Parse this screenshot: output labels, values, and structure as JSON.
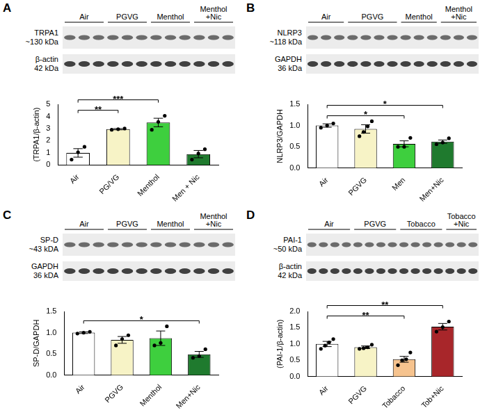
{
  "chart_data": [
    {
      "type": "bar",
      "title": "A",
      "blot": {
        "groups": [
          "Air",
          "PGVG",
          "Menthol",
          "Menthol +Nic"
        ],
        "bands": [
          {
            "label": "TRPA1",
            "size": "~130 kDa"
          },
          {
            "label": "β-actin",
            "size": "42 kDa"
          }
        ]
      },
      "categories": [
        "Air",
        "PG/VG",
        "Menthol",
        "Men + Nic"
      ],
      "values": [
        1.0,
        2.95,
        3.5,
        0.9
      ],
      "errors": [
        0.35,
        0.05,
        0.35,
        0.3
      ],
      "points": [
        [
          0.45,
          1.05,
          1.5
        ],
        [
          2.9,
          2.95,
          3.0
        ],
        [
          2.9,
          3.55,
          4.05
        ],
        [
          0.45,
          0.95,
          1.3
        ]
      ],
      "colors": [
        "#ffffff",
        "#f7f3c6",
        "#3ecf3e",
        "#1f7a2e"
      ],
      "y_label": "(TRPA1/β-actin)",
      "ylim": [
        0,
        5
      ],
      "yticks": [
        0,
        1,
        2,
        3,
        4,
        5
      ],
      "grid": false,
      "comparisons": [
        {
          "from": "Air",
          "to": "PG/VG",
          "label": "**"
        },
        {
          "from": "Air",
          "to": "Menthol",
          "label": "***"
        }
      ]
    },
    {
      "type": "bar",
      "title": "B",
      "blot": {
        "groups": [
          "Air",
          "PGVG",
          "Menthol",
          "Menthol +Nic"
        ],
        "bands": [
          {
            "label": "NLRP3",
            "size": "~118 kDa"
          },
          {
            "label": "GAPDH",
            "size": "36 kDa"
          }
        ]
      },
      "categories": [
        "Air",
        "PGVG",
        "Men",
        "Men+Nic"
      ],
      "values": [
        1.0,
        0.92,
        0.57,
        0.62
      ],
      "errors": [
        0.04,
        0.1,
        0.07,
        0.04
      ],
      "points": [
        [
          0.95,
          1.0,
          1.05
        ],
        [
          0.75,
          0.85,
          0.98,
          1.1
        ],
        [
          0.5,
          0.5,
          0.71
        ],
        [
          0.56,
          0.6,
          0.7
        ]
      ],
      "colors": [
        "#ffffff",
        "#f7f3c6",
        "#3ecf3e",
        "#1f7a2e"
      ],
      "y_label": "NLRP3/GAPDH",
      "ylim": [
        0,
        1.5
      ],
      "yticks": [
        {
          "value": 0,
          "label": "0.0"
        },
        {
          "value": 0.5,
          "label": "0.5"
        },
        {
          "value": 1,
          "label": "1.0"
        },
        {
          "value": 1.5,
          "label": "1.5"
        }
      ],
      "grid": false,
      "comparisons": [
        {
          "from": "Air",
          "to": "Men",
          "label": "*"
        },
        {
          "from": "Air",
          "to": "Men+Nic",
          "label": "*"
        }
      ]
    },
    {
      "type": "bar",
      "title": "C",
      "blot": {
        "groups": [
          "Air",
          "PGVG",
          "Menthol",
          "Menthol +Nic"
        ],
        "bands": [
          {
            "label": "SP-D",
            "size": "~43 kDA"
          },
          {
            "label": "GAPDH",
            "size": "36 kDA"
          }
        ]
      },
      "categories": [
        "Air",
        "PGVG",
        "Menthol",
        "Men+Nic"
      ],
      "values": [
        1.0,
        0.83,
        0.87,
        0.49
      ],
      "errors": [
        0.02,
        0.08,
        0.17,
        0.07
      ],
      "points": [
        [
          0.98,
          1.0,
          1.02
        ],
        [
          0.7,
          0.85,
          0.94
        ],
        [
          0.7,
          0.76,
          1.15
        ],
        [
          0.41,
          0.45,
          0.61
        ]
      ],
      "colors": [
        "#ffffff",
        "#f7f3c6",
        "#3ecf3e",
        "#1f7a2e"
      ],
      "y_label": "SP-D/GAPDH",
      "ylim": [
        0,
        1.5
      ],
      "yticks": [
        {
          "value": 0,
          "label": "0.0"
        },
        {
          "value": 0.5,
          "label": "0.5"
        },
        {
          "value": 1,
          "label": "1.0"
        },
        {
          "value": 1.5,
          "label": "1.5"
        }
      ],
      "grid": false,
      "comparisons": [
        {
          "from": "Air",
          "to": "Men+Nic",
          "label": "*"
        }
      ]
    },
    {
      "type": "bar",
      "title": "D",
      "blot": {
        "groups": [
          "Air",
          "PGVG",
          "Tobacco",
          "Tobacco +Nic"
        ],
        "bands": [
          {
            "label": "PAI-1",
            "size": "~50 kDa"
          },
          {
            "label": "β-actin",
            "size": "42 kDa"
          }
        ]
      },
      "categories": [
        "Air",
        "PGVG",
        "Tobacco",
        "Tob+Nic"
      ],
      "values": [
        1.0,
        0.9,
        0.53,
        1.53
      ],
      "errors": [
        0.08,
        0.04,
        0.09,
        0.1
      ],
      "points": [
        [
          0.85,
          0.95,
          1.05,
          1.15
        ],
        [
          0.85,
          0.87,
          0.9,
          0.98
        ],
        [
          0.35,
          0.5,
          0.53,
          0.74
        ],
        [
          1.38,
          1.52,
          1.69
        ]
      ],
      "colors": [
        "#ffffff",
        "#f7f3c6",
        "#f6c38e",
        "#a8262a"
      ],
      "y_label": "(PAI-1/β-actin)",
      "ylim": [
        0,
        2
      ],
      "yticks": [
        {
          "value": 0,
          "label": "0.0"
        },
        {
          "value": 0.5,
          "label": "0.5"
        },
        {
          "value": 1,
          "label": "1.0"
        },
        {
          "value": 1.5,
          "label": "1.5"
        },
        {
          "value": 2,
          "label": "2.0"
        }
      ],
      "grid": false,
      "comparisons": [
        {
          "from": "Air",
          "to": "Tobacco",
          "label": "**"
        },
        {
          "from": "Air",
          "to": "Tob+Nic",
          "label": "**"
        }
      ]
    }
  ]
}
